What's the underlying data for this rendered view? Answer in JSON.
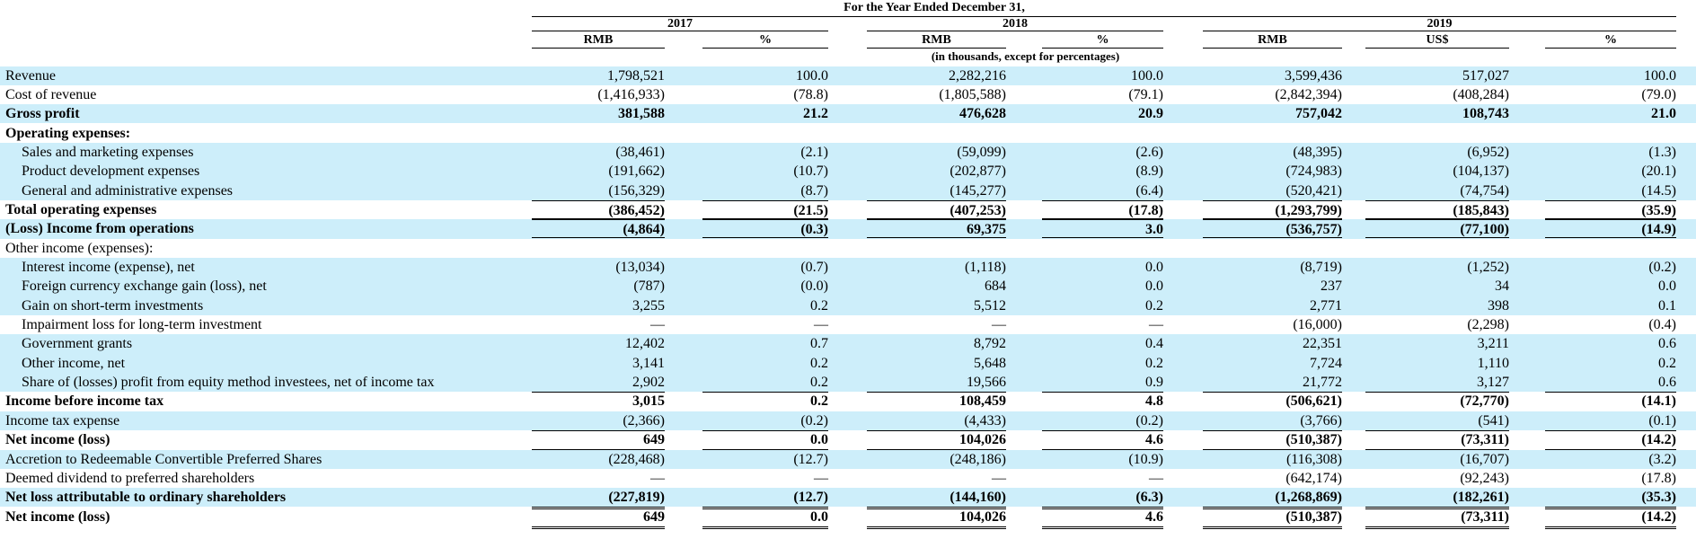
{
  "header": {
    "period": "For the Year Ended December 31,",
    "years": [
      "2017",
      "2018",
      "2019"
    ],
    "col_labels": [
      "RMB",
      "%",
      "RMB",
      "%",
      "RMB",
      "US$",
      "%"
    ],
    "units_note": "(in thousands, except for percentages)"
  },
  "rows": [
    {
      "label": "Revenue",
      "v": [
        "1,798,521",
        "100.0",
        "2,282,216",
        "100.0",
        "3,599,436",
        "517,027",
        "100.0"
      ]
    },
    {
      "label": "Cost of revenue",
      "v": [
        "(1,416,933)",
        "(78.8)",
        "(1,805,588)",
        "(79.1)",
        "(2,842,394)",
        "(408,284)",
        "(79.0)"
      ]
    },
    {
      "label": "Gross profit",
      "v": [
        "381,588",
        "21.2",
        "476,628",
        "20.9",
        "757,042",
        "108,743",
        "21.0"
      ]
    },
    {
      "label": "Operating expenses:",
      "v": [
        "",
        "",
        "",
        "",
        "",
        "",
        ""
      ]
    },
    {
      "label": "Sales and marketing expenses",
      "v": [
        "(38,461)",
        "(2.1)",
        "(59,099)",
        "(2.6)",
        "(48,395)",
        "(6,952)",
        "(1.3)"
      ]
    },
    {
      "label": "Product development expenses",
      "v": [
        "(191,662)",
        "(10.7)",
        "(202,877)",
        "(8.9)",
        "(724,983)",
        "(104,137)",
        "(20.1)"
      ]
    },
    {
      "label": "General and administrative expenses",
      "v": [
        "(156,329)",
        "(8.7)",
        "(145,277)",
        "(6.4)",
        "(520,421)",
        "(74,754)",
        "(14.5)"
      ]
    },
    {
      "label": "Total operating expenses",
      "v": [
        "(386,452)",
        "(21.5)",
        "(407,253)",
        "(17.8)",
        "(1,293,799)",
        "(185,843)",
        "(35.9)"
      ]
    },
    {
      "label": "(Loss) Income from operations",
      "v": [
        "(4,864)",
        "(0.3)",
        "69,375",
        "3.0",
        "(536,757)",
        "(77,100)",
        "(14.9)"
      ]
    },
    {
      "label": "Other income (expenses):",
      "v": [
        "",
        "",
        "",
        "",
        "",
        "",
        ""
      ]
    },
    {
      "label": "Interest income (expense), net",
      "v": [
        "(13,034)",
        "(0.7)",
        "(1,118)",
        "0.0",
        "(8,719)",
        "(1,252)",
        "(0.2)"
      ]
    },
    {
      "label": "Foreign currency exchange gain (loss), net",
      "v": [
        "(787)",
        "(0.0)",
        "684",
        "0.0",
        "237",
        "34",
        "0.0"
      ]
    },
    {
      "label": "Gain on short-term investments",
      "v": [
        "3,255",
        "0.2",
        "5,512",
        "0.2",
        "2,771",
        "398",
        "0.1"
      ]
    },
    {
      "label": "Impairment loss for long-term investment",
      "v": [
        "—",
        "—",
        "—",
        "—",
        "(16,000)",
        "(2,298)",
        "(0.4)"
      ]
    },
    {
      "label": "Government grants",
      "v": [
        "12,402",
        "0.7",
        "8,792",
        "0.4",
        "22,351",
        "3,211",
        "0.6"
      ]
    },
    {
      "label": "Other income, net",
      "v": [
        "3,141",
        "0.2",
        "5,648",
        "0.2",
        "7,724",
        "1,110",
        "0.2"
      ]
    },
    {
      "label": "Share of (losses) profit from equity method investees, net of income tax",
      "v": [
        "2,902",
        "0.2",
        "19,566",
        "0.9",
        "21,772",
        "3,127",
        "0.6"
      ]
    },
    {
      "label": "Income before income tax",
      "v": [
        "3,015",
        "0.2",
        "108,459",
        "4.8",
        "(506,621)",
        "(72,770)",
        "(14.1)"
      ]
    },
    {
      "label": "Income tax expense",
      "v": [
        "(2,366)",
        "(0.2)",
        "(4,433)",
        "(0.2)",
        "(3,766)",
        "(541)",
        "(0.1)"
      ]
    },
    {
      "label": "Net income (loss)",
      "v": [
        "649",
        "0.0",
        "104,026",
        "4.6",
        "(510,387)",
        "(73,311)",
        "(14.2)"
      ]
    },
    {
      "label": "Accretion to Redeemable Convertible Preferred Shares",
      "v": [
        "(228,468)",
        "(12.7)",
        "(248,186)",
        "(10.9)",
        "(116,308)",
        "(16,707)",
        "(3.2)"
      ]
    },
    {
      "label": "Deemed dividend to preferred shareholders",
      "v": [
        "—",
        "—",
        "—",
        "—",
        "(642,174)",
        "(92,243)",
        "(17.8)"
      ]
    },
    {
      "label": "Net loss attributable to ordinary shareholders",
      "v": [
        "(227,819)",
        "(12.7)",
        "(144,160)",
        "(6.3)",
        "(1,268,869)",
        "(182,261)",
        "(35.3)"
      ]
    },
    {
      "label": "Net income (loss)",
      "v": [
        "649",
        "0.0",
        "104,026",
        "4.6",
        "(510,387)",
        "(73,311)",
        "(14.2)"
      ]
    }
  ]
}
